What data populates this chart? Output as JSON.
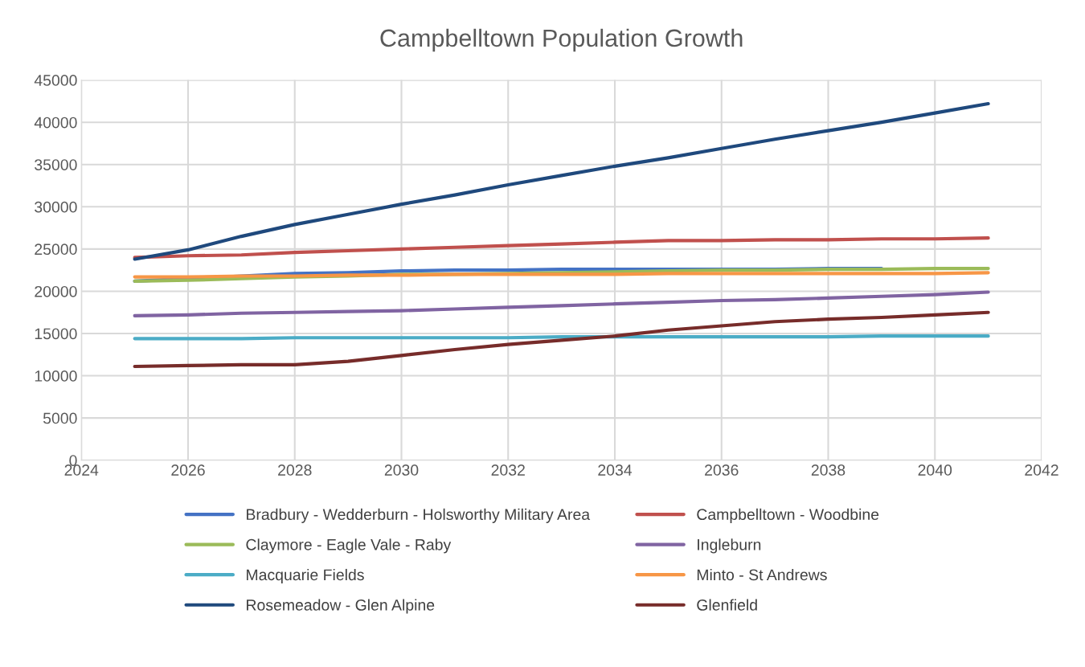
{
  "chart_data": {
    "type": "line",
    "title": "Campbelltown Population Growth",
    "x": [
      2025,
      2026,
      2027,
      2028,
      2029,
      2030,
      2031,
      2032,
      2033,
      2034,
      2035,
      2036,
      2037,
      2038,
      2039,
      2040,
      2041
    ],
    "series": [
      {
        "name": "Bradbury - Wedderburn - Holsworthy Military Area",
        "color": "#4472c4",
        "values": [
          21200,
          21500,
          21800,
          22100,
          22200,
          22400,
          22500,
          22500,
          22600,
          22600,
          22600,
          22600,
          22600,
          22700,
          22700,
          null,
          null
        ]
      },
      {
        "name": "Campbelltown - Woodbine",
        "color": "#c0504d",
        "values": [
          24000,
          24200,
          24300,
          24600,
          24800,
          25000,
          25200,
          25400,
          25600,
          25800,
          26000,
          26000,
          26100,
          26100,
          26200,
          26200,
          26300
        ]
      },
      {
        "name": "Claymore - Eagle Vale - Raby",
        "color": "#9bbb59",
        "values": [
          21200,
          21300,
          21500,
          21700,
          21800,
          22000,
          22000,
          22100,
          22200,
          22300,
          22400,
          22500,
          22500,
          22600,
          22600,
          22700,
          22700
        ]
      },
      {
        "name": "Ingleburn",
        "color": "#8064a2",
        "values": [
          17100,
          17200,
          17400,
          17500,
          17600,
          17700,
          17900,
          18100,
          18300,
          18500,
          18700,
          18900,
          19000,
          19200,
          19400,
          19600,
          19900
        ]
      },
      {
        "name": "Macquarie Fields",
        "color": "#4bacc6",
        "values": [
          14400,
          14400,
          14400,
          14500,
          14500,
          14500,
          14500,
          14500,
          14600,
          14600,
          14600,
          14600,
          14600,
          14600,
          14700,
          14700,
          14700
        ]
      },
      {
        "name": "Minto - St Andrews",
        "color": "#f79646",
        "values": [
          21700,
          21700,
          21800,
          21800,
          21900,
          21900,
          22000,
          22000,
          22000,
          22000,
          22100,
          22100,
          22100,
          22100,
          22100,
          22100,
          22200
        ]
      },
      {
        "name": "Rosemeadow - Glen Alpine",
        "color": "#1f497d",
        "values": [
          23800,
          24900,
          26500,
          27900,
          29100,
          30300,
          31400,
          32600,
          33700,
          34800,
          35800,
          36900,
          38000,
          39000,
          40000,
          41100,
          42200
        ]
      },
      {
        "name": "Glenfield",
        "color": "#772c2a",
        "values": [
          11100,
          11200,
          11300,
          11300,
          11700,
          12400,
          13100,
          13700,
          14200,
          14700,
          15400,
          15900,
          16400,
          16700,
          16900,
          17200,
          17500
        ]
      }
    ],
    "xlim": [
      2024,
      2042
    ],
    "xticks": [
      2024,
      2026,
      2028,
      2030,
      2032,
      2034,
      2036,
      2038,
      2040,
      2042
    ],
    "ylim": [
      0,
      45000
    ],
    "yticks": [
      0,
      5000,
      10000,
      15000,
      20000,
      25000,
      30000,
      35000,
      40000,
      45000
    ],
    "grid": true,
    "legend": "bottom",
    "marker": "none",
    "line_style": "solid"
  }
}
